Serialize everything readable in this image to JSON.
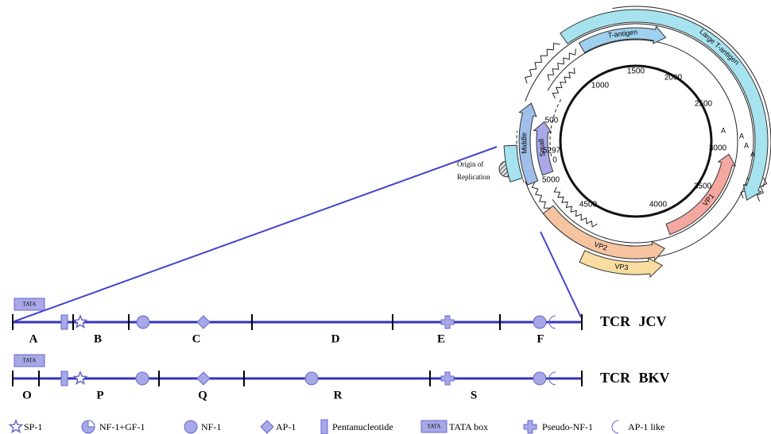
{
  "plasmid_map": {
    "genes": [
      {
        "label": "Large T-antigen"
      },
      {
        "label": "T-antigen"
      },
      {
        "label": "Middle"
      },
      {
        "label": "Small"
      },
      {
        "label": "VP1"
      },
      {
        "label": "VP2"
      },
      {
        "label": "VP3"
      }
    ],
    "position_labels": [
      "1000",
      "1500",
      "2000",
      "2500",
      "3000",
      "3500",
      "4000",
      "4500",
      "5000",
      "5297",
      "0",
      "500"
    ],
    "polya_labels": [
      "A",
      "A",
      "A",
      "A"
    ],
    "origin_label_lines": [
      "Origin of",
      "Replication"
    ]
  },
  "tcr": [
    {
      "name": "TCR JCV",
      "tata": "TATA",
      "segments": [
        "A",
        "B",
        "C",
        "D",
        "E",
        "F"
      ]
    },
    {
      "name": "TCR BKV",
      "tata": "TATA",
      "segments": [
        "O",
        "P",
        "Q",
        "R",
        "S"
      ]
    }
  ],
  "legend": [
    {
      "label": "SP-1"
    },
    {
      "label": "NF-1+GF-1"
    },
    {
      "label": "NF-1"
    },
    {
      "label": "AP-1"
    },
    {
      "label": "Pentanucleotide"
    },
    {
      "icon_text": "TATA",
      "label": "TATA box"
    },
    {
      "label": "Pseudo-NF-1"
    },
    {
      "label": "AP-1 like"
    }
  ]
}
